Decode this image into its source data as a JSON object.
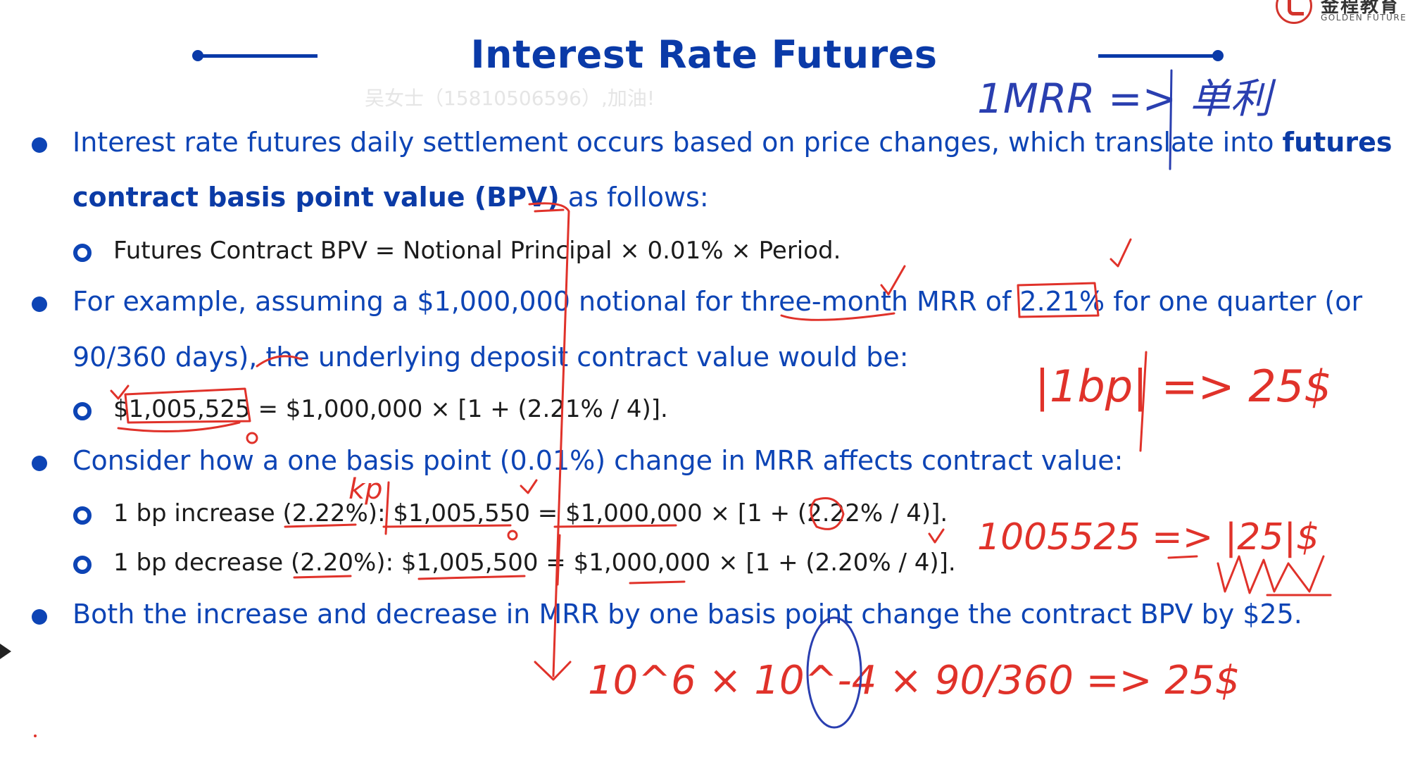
{
  "header": {
    "title": "Interest Rate Futures",
    "watermark": "吴女士（15810506596）,加油!",
    "accent_color": "#0a3aa8"
  },
  "logo": {
    "cn_name": "金程教育",
    "en_name": "GOLDEN FUTURE",
    "color": "#d3342c"
  },
  "bullets": {
    "b1": {
      "text": "Interest rate futures daily settlement occurs based on price changes, which translate into ",
      "bold_a": "futures",
      "bold_b": "contract basis point value (BPV)",
      "tail": " as follows:",
      "sub1": "Futures Contract BPV = Notional Principal × 0.01% × Period."
    },
    "b2": {
      "line1": "For example, assuming a $1,000,000 notional for three-month MRR of 2.21% for one quarter (or",
      "line2": "90/360 days), the underlying deposit contract value would be:",
      "sub1": "$1,005,525 = $1,000,000 × [1 + (2.21% / 4)]."
    },
    "b3": {
      "line1": "Consider how a one basis point (0.01%) change in MRR affects contract value:",
      "sub1": "1 bp increase (2.22%): $1,005,550 = $1,000,000 × [1 + (2.22% / 4)].",
      "sub2": "1 bp decrease (2.20%): $1,005,500 = $1,000,000 × [1 + (2.20% / 4)]."
    },
    "b4": {
      "line1": "Both the increase and decrease in MRR by one basis point change the contract BPV by $25."
    }
  },
  "annotations": {
    "ink_color": "#e0322a",
    "ink_color_blue": "#2a3fb0",
    "mrr_note": "1MRR => 单利",
    "bp_note": "|1bp| => 25$",
    "sub_note": "1005525 => |25|$",
    "bp_lower": "kp",
    "formula": "10^6 × 10^-4 × 90/360 => 25$"
  }
}
